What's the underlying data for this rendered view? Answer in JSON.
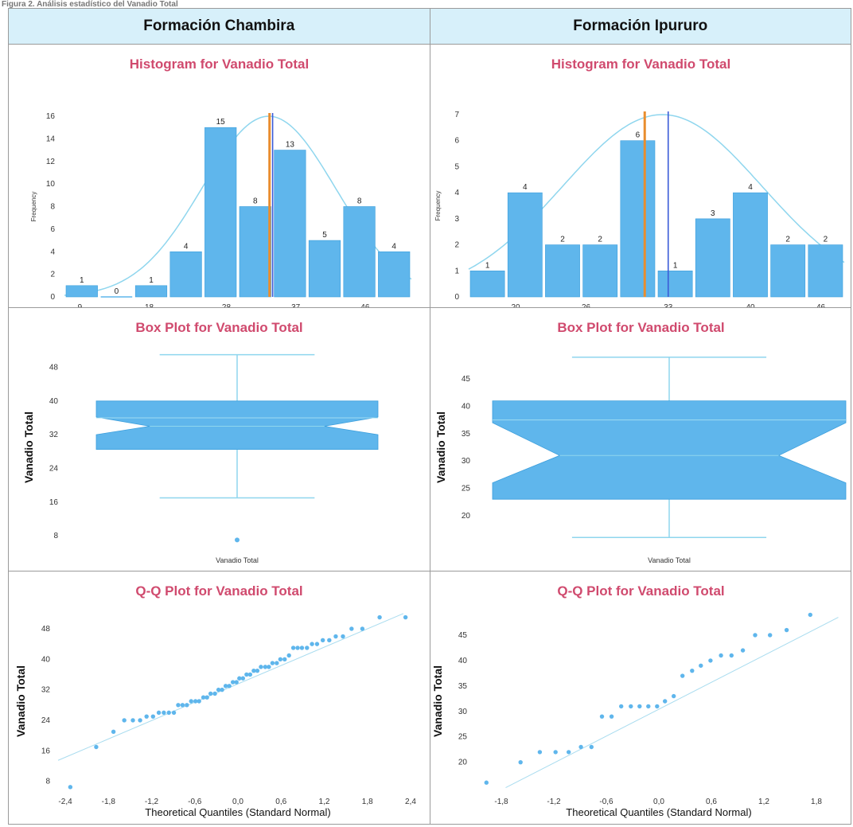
{
  "caption": "Figura 2. Análisis estadístico del Vanadio Total",
  "headers": [
    "Formación Chambira",
    "Formación Ipururo"
  ],
  "colors": {
    "bar": "#5fb6ec",
    "curve": "#8fd6ee",
    "mean": "#e98d2e",
    "median": "#3b5bd8",
    "title": "#d04a6e"
  },
  "chart_data": [
    {
      "type": "bar",
      "title": "Histogram for Vanadio Total",
      "ylabel": "Frequency",
      "bins": [
        {
          "x0": 7,
          "x1": 11.5,
          "count": 1
        },
        {
          "x0": 11.5,
          "x1": 16,
          "count": 0
        },
        {
          "x0": 16,
          "x1": 20.5,
          "count": 1
        },
        {
          "x0": 20.5,
          "x1": 25,
          "count": 4
        },
        {
          "x0": 25,
          "x1": 29.5,
          "count": 15
        },
        {
          "x0": 29.5,
          "x1": 34,
          "count": 8
        },
        {
          "x0": 34,
          "x1": 38.5,
          "count": 13
        },
        {
          "x0": 38.5,
          "x1": 43,
          "count": 5
        },
        {
          "x0": 43,
          "x1": 47.5,
          "count": 8
        },
        {
          "x0": 47.5,
          "x1": 52,
          "count": 4
        }
      ],
      "xticks": [
        9,
        18,
        28,
        37,
        46
      ],
      "yticks": [
        0,
        2,
        4,
        6,
        8,
        10,
        12,
        14,
        16
      ],
      "xlim": [
        7,
        52
      ],
      "ylim": [
        0,
        16
      ],
      "mean": 33.6,
      "median": 34.0,
      "normal_curve": {
        "mean": 33.5,
        "sd": 8.6,
        "peak": 16
      }
    },
    {
      "type": "bar",
      "title": "Histogram for Vanadio Total",
      "ylabel": "Frequency",
      "bins": [
        {
          "x0": 16,
          "x1": 19.2,
          "count": 1
        },
        {
          "x0": 19.2,
          "x1": 22.4,
          "count": 4
        },
        {
          "x0": 22.4,
          "x1": 25.6,
          "count": 2
        },
        {
          "x0": 25.6,
          "x1": 28.8,
          "count": 2
        },
        {
          "x0": 28.8,
          "x1": 32,
          "count": 6
        },
        {
          "x0": 32,
          "x1": 35.2,
          "count": 1
        },
        {
          "x0": 35.2,
          "x1": 38.4,
          "count": 3
        },
        {
          "x0": 38.4,
          "x1": 41.6,
          "count": 4
        },
        {
          "x0": 41.6,
          "x1": 44.8,
          "count": 2
        },
        {
          "x0": 44.8,
          "x1": 48,
          "count": 2
        }
      ],
      "xticks": [
        20,
        26,
        33,
        40,
        46
      ],
      "yticks": [
        0,
        1,
        2,
        3,
        4,
        5,
        6,
        7
      ],
      "xlim": [
        16,
        48
      ],
      "ylim": [
        0,
        7
      ],
      "mean": 31.0,
      "median": 33.0,
      "normal_curve": {
        "mean": 32.5,
        "sd": 8.5,
        "peak": 7
      }
    },
    {
      "type": "box",
      "title": "Box Plot for Vanadio Total",
      "ylabel": "Vanadio Total",
      "xlabel": "Vanadio Total",
      "yticks": [
        8,
        16,
        24,
        32,
        40,
        48
      ],
      "ylim": [
        5,
        53
      ],
      "min": 17,
      "q1": 28.5,
      "median": 34,
      "q3": 40,
      "max": 51,
      "notch_low": 32,
      "notch_high": 36.2,
      "mean": 36,
      "outliers": [
        7
      ]
    },
    {
      "type": "box",
      "title": "Box Plot for Vanadio Total",
      "ylabel": "Vanadio Total",
      "xlabel": "Vanadio Total",
      "yticks": [
        20,
        25,
        30,
        35,
        40,
        45
      ],
      "ylim": [
        14,
        51
      ],
      "min": 16,
      "q1": 23,
      "median": 31,
      "q3": 41,
      "max": 49,
      "notch_low": 26,
      "notch_high": 37,
      "mean": 37.5,
      "outliers": []
    },
    {
      "type": "scatter",
      "title": "Q-Q Plot for Vanadio Total",
      "ylabel": "Vanadio Total",
      "xlabel": "Theoretical Quantiles (Standard Normal)",
      "xticks": [
        "-2,4",
        "-1,8",
        "-1,2",
        "-0,6",
        "0,0",
        "0,6",
        "1,2",
        "1,8",
        "2,4"
      ],
      "xtick_values": [
        -2.4,
        -1.8,
        -1.2,
        -0.6,
        0,
        0.6,
        1.2,
        1.8,
        2.4
      ],
      "yticks": [
        8,
        16,
        24,
        32,
        40,
        48
      ],
      "xlim": [
        -2.5,
        2.5
      ],
      "ylim": [
        5,
        53
      ],
      "line": [
        [
          -2.5,
          13.5
        ],
        [
          2.3,
          52
        ]
      ],
      "x": [
        -2.33,
        -1.97,
        -1.73,
        -1.58,
        -1.46,
        -1.36,
        -1.27,
        -1.18,
        -1.1,
        -1.03,
        -0.96,
        -0.89,
        -0.83,
        -0.77,
        -0.71,
        -0.65,
        -0.59,
        -0.54,
        -0.48,
        -0.43,
        -0.38,
        -0.32,
        -0.27,
        -0.22,
        -0.17,
        -0.12,
        -0.07,
        -0.02,
        0.02,
        0.07,
        0.12,
        0.17,
        0.22,
        0.27,
        0.32,
        0.38,
        0.43,
        0.48,
        0.54,
        0.59,
        0.65,
        0.71,
        0.77,
        0.83,
        0.89,
        0.96,
        1.03,
        1.1,
        1.18,
        1.27,
        1.36,
        1.46,
        1.58,
        1.73,
        1.97,
        2.33
      ],
      "y": [
        6.5,
        17,
        21,
        24,
        24,
        24,
        25,
        25,
        26,
        26,
        26,
        26,
        28,
        28,
        28,
        29,
        29,
        29,
        30,
        30,
        31,
        31,
        32,
        32,
        33,
        33,
        34,
        34,
        35,
        35,
        36,
        36,
        37,
        37,
        38,
        38,
        38,
        39,
        39,
        40,
        40,
        41,
        43,
        43,
        43,
        43,
        44,
        44,
        45,
        45,
        46,
        46,
        48,
        48,
        51,
        51
      ]
    },
    {
      "type": "scatter",
      "title": "Q-Q Plot for Vanadio Total",
      "ylabel": "Vanadio Total",
      "xlabel": "Theoretical Quantiles (Standard Normal)",
      "xticks": [
        "-1,8",
        "-1,2",
        "-0,6",
        "0,0",
        "0,6",
        "1,2",
        "1,8"
      ],
      "xtick_values": [
        -1.8,
        -1.2,
        -0.6,
        0,
        0.6,
        1.2,
        1.8
      ],
      "yticks": [
        20,
        25,
        30,
        35,
        40,
        45
      ],
      "xlim": [
        -2.1,
        2.1
      ],
      "ylim": [
        14,
        50
      ],
      "line": [
        [
          -1.75,
          15
        ],
        [
          2.05,
          48.5
        ]
      ],
      "x": [
        -1.97,
        -1.58,
        -1.36,
        -1.18,
        -1.03,
        -0.89,
        -0.77,
        -0.65,
        -0.54,
        -0.43,
        -0.32,
        -0.22,
        -0.12,
        -0.02,
        0.07,
        0.17,
        0.27,
        0.38,
        0.48,
        0.59,
        0.71,
        0.83,
        0.96,
        1.1,
        1.27,
        1.46,
        1.73
      ],
      "y": [
        16,
        20,
        22,
        22,
        22,
        23,
        23,
        29,
        29,
        31,
        31,
        31,
        31,
        31,
        32,
        33,
        37,
        38,
        39,
        40,
        41,
        41,
        42,
        45,
        45,
        46,
        49
      ]
    }
  ]
}
